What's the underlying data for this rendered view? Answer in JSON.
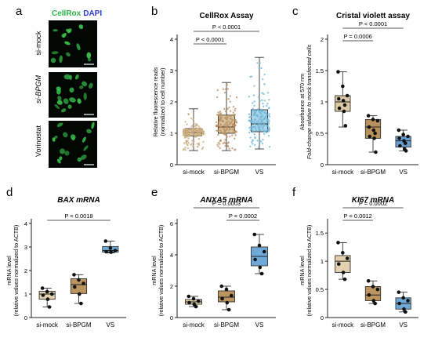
{
  "panels": [
    {
      "letter": "a"
    },
    {
      "letter": "b"
    },
    {
      "letter": "c"
    },
    {
      "letter": "d"
    },
    {
      "letter": "e"
    },
    {
      "letter": "f"
    }
  ],
  "microscopy": {
    "legend_green": "CellRox",
    "legend_blue": "DAPI",
    "rows": [
      "si-mock",
      "si-BPGM",
      "Vorinostat"
    ],
    "colors": {
      "cells": "#39c24a",
      "background": "#030703"
    }
  },
  "chart_data": [
    {
      "panel": "b",
      "type": "box",
      "title": "CellRox Assay",
      "ylabel": [
        "Relative fluorescence reads",
        "(normalized to cell number)"
      ],
      "categories": [
        "si-mock",
        "si-BPGM",
        "VS"
      ],
      "ylim": [
        0,
        4
      ],
      "yticks": [
        0,
        1,
        2,
        3,
        4
      ],
      "fills": [
        "#e3d7bf",
        "#d8c4a3",
        "#a9d3e6"
      ],
      "dot_color": [
        "#c8a97a",
        "#b98e5c",
        "#6bb5d8"
      ],
      "boxes": [
        {
          "min": 0.45,
          "q1": 0.92,
          "median": 1.02,
          "q3": 1.15,
          "max": 1.78
        },
        {
          "min": 0.45,
          "q1": 1.0,
          "median": 1.2,
          "q3": 1.58,
          "max": 2.62
        },
        {
          "min": 0.5,
          "q1": 1.05,
          "median": 1.3,
          "q3": 1.75,
          "max": 3.42
        }
      ],
      "n_points": [
        180,
        170,
        170
      ],
      "brackets": [
        {
          "from": 0,
          "to": 1,
          "label": "P < 0.0001"
        },
        {
          "from": 0,
          "to": 2,
          "label": "P < 0.0001"
        }
      ]
    },
    {
      "panel": "c",
      "type": "box",
      "title": "Cristal violett assay",
      "ylabel": [
        "Absorbance at 570 nm",
        "Fold-change relative to mock transfected cells"
      ],
      "categories": [
        "si-mock",
        "si-BPGM",
        "VS"
      ],
      "ylim": [
        0,
        2.0
      ],
      "yticks": [
        0,
        0.5,
        1.0,
        1.5,
        2.0
      ],
      "fills": [
        "#dcc8a4",
        "#b8915d",
        "#6a9fd1"
      ],
      "boxes": [
        {
          "min": 0.6,
          "q1": 0.85,
          "median": 1.0,
          "q3": 1.1,
          "max": 1.48
        },
        {
          "min": 0.2,
          "q1": 0.42,
          "median": 0.6,
          "q3": 0.72,
          "max": 0.78
        },
        {
          "min": 0.22,
          "q1": 0.28,
          "median": 0.38,
          "q3": 0.45,
          "max": 0.55
        }
      ],
      "points": [
        [
          1.48,
          1.25,
          1.1,
          1.05,
          1.02,
          0.95,
          0.9,
          0.85,
          0.62
        ],
        [
          0.78,
          0.72,
          0.7,
          0.6,
          0.55,
          0.5,
          0.45,
          0.42,
          0.2
        ],
        [
          0.55,
          0.48,
          0.45,
          0.42,
          0.38,
          0.34,
          0.3,
          0.25,
          0.22
        ]
      ],
      "brackets": [
        {
          "from": 0,
          "to": 1,
          "label": "P = 0.0006"
        },
        {
          "from": 0,
          "to": 2,
          "label": "P < 0.0001"
        }
      ]
    },
    {
      "panel": "d",
      "type": "box",
      "title": "BAX mRNA",
      "ylabel": [
        "mRNA level",
        "(relative values normalized to ACTB)"
      ],
      "categories": [
        "si-mock",
        "si-BPGM",
        "VS"
      ],
      "ylim": [
        0,
        4
      ],
      "yticks": [
        0,
        1,
        2,
        3,
        4
      ],
      "fills": [
        "#e3d2b0",
        "#bb9460",
        "#6fa9d7"
      ],
      "boxes": [
        {
          "min": 0.45,
          "q1": 0.78,
          "median": 1.0,
          "q3": 1.12,
          "max": 1.25
        },
        {
          "min": 0.6,
          "q1": 1.02,
          "median": 1.4,
          "q3": 1.65,
          "max": 1.82
        },
        {
          "min": 2.75,
          "q1": 2.78,
          "median": 2.85,
          "q3": 3.02,
          "max": 3.25
        }
      ],
      "points": [
        [
          1.25,
          1.1,
          1.0,
          0.95,
          0.78,
          0.45
        ],
        [
          1.82,
          1.6,
          1.45,
          1.3,
          1.0,
          0.6
        ],
        [
          3.25,
          2.95,
          2.85,
          2.8,
          2.78
        ]
      ],
      "brackets": [
        {
          "from": 0,
          "to": 2,
          "label": "P = 0.0018"
        }
      ]
    },
    {
      "panel": "e",
      "type": "box",
      "title": "ANXA5 mRNA",
      "ylabel": [
        "mRNA level",
        "(relative values normalized to ACTB)"
      ],
      "categories": [
        "si-mock",
        "si-BPGM",
        "VS"
      ],
      "ylim": [
        0,
        6
      ],
      "yticks": [
        0,
        2,
        4,
        6
      ],
      "fills": [
        "#e3d2b0",
        "#bb9460",
        "#6fa9d7"
      ],
      "boxes": [
        {
          "min": 0.7,
          "q1": 0.85,
          "median": 1.0,
          "q3": 1.15,
          "max": 1.35
        },
        {
          "min": 0.5,
          "q1": 1.0,
          "median": 1.3,
          "q3": 1.7,
          "max": 2.0
        },
        {
          "min": 2.8,
          "q1": 3.3,
          "median": 3.9,
          "q3": 4.5,
          "max": 5.3
        }
      ],
      "points": [
        [
          1.35,
          1.2,
          1.05,
          0.95,
          0.85,
          0.7
        ],
        [
          2.0,
          1.8,
          1.4,
          1.2,
          0.95,
          0.5
        ],
        [
          5.3,
          4.6,
          4.2,
          3.7,
          3.2,
          2.8
        ]
      ],
      "brackets": [
        {
          "from": 1,
          "to": 2,
          "label": "P = 0.0002"
        },
        {
          "from": 0,
          "to": 2,
          "label": "P = 0.0003"
        }
      ]
    },
    {
      "panel": "f",
      "type": "box",
      "title": "KI67 mRNA",
      "ylabel": [
        "mRNA level",
        "(relative values normalized to ACTB)"
      ],
      "categories": [
        "si-mock",
        "si-BPGM",
        "VS"
      ],
      "ylim": [
        0,
        1.67
      ],
      "yticks": [
        0,
        0.5,
        1.0,
        1.5
      ],
      "fills": [
        "#e3d2b0",
        "#bb9460",
        "#6fa9d7"
      ],
      "boxes": [
        {
          "min": 0.68,
          "q1": 0.8,
          "median": 1.0,
          "q3": 1.1,
          "max": 1.33
        },
        {
          "min": 0.25,
          "q1": 0.3,
          "median": 0.4,
          "q3": 0.55,
          "max": 0.65
        },
        {
          "min": 0.1,
          "q1": 0.15,
          "median": 0.25,
          "q3": 0.35,
          "max": 0.45
        }
      ],
      "points": [
        [
          1.33,
          1.15,
          1.05,
          0.95,
          0.8,
          0.68
        ],
        [
          0.65,
          0.55,
          0.5,
          0.4,
          0.3,
          0.25
        ],
        [
          0.45,
          0.35,
          0.3,
          0.25,
          0.15,
          0.1
        ]
      ],
      "brackets": [
        {
          "from": 0,
          "to": 1,
          "label": "P = 0.0012"
        },
        {
          "from": 0,
          "to": 2,
          "label": "P = 0.0002"
        }
      ]
    }
  ]
}
